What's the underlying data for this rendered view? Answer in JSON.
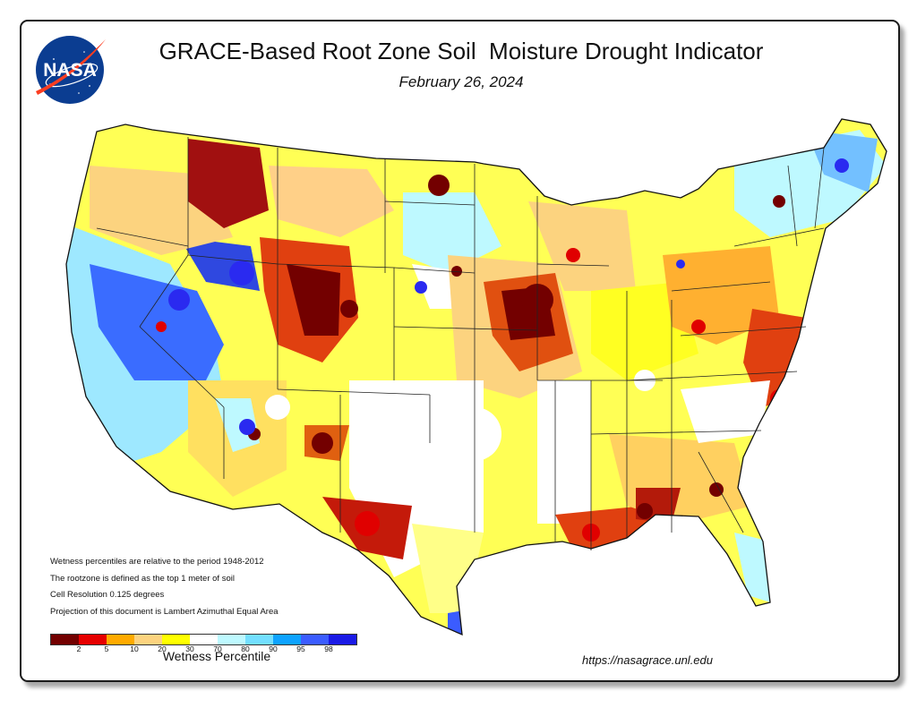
{
  "header": {
    "title": "GRACE-Based Root Zone Soil  Moisture Drought Indicator",
    "date": "February 26, 2024",
    "logo_text": "NASA"
  },
  "notes": [
    "Wetness percentiles are relative to the period 1948-2012",
    "The rootzone is defined as the top 1 meter of soil",
    "Cell Resolution 0.125 degrees",
    "Projection of this document is Lambert Azimuthal Equal Area"
  ],
  "legend": {
    "title": "Wetness Percentile",
    "colors": [
      "#730000",
      "#e60000",
      "#ffaa00",
      "#fcd37f",
      "#ffff00",
      "#ffffff",
      "#bef9ff",
      "#73dfff",
      "#0ea3ff",
      "#3b5cff",
      "#1a1ae6"
    ],
    "ticks": [
      "2",
      "5",
      "10",
      "20",
      "30",
      "70",
      "80",
      "90",
      "95",
      "98"
    ]
  },
  "source_url": "https://nasagrace.unl.edu",
  "colors": {
    "frame_border": "#1a1a1a",
    "nasa_blue": "#0b3d91",
    "nasa_red": "#fc3d21"
  }
}
